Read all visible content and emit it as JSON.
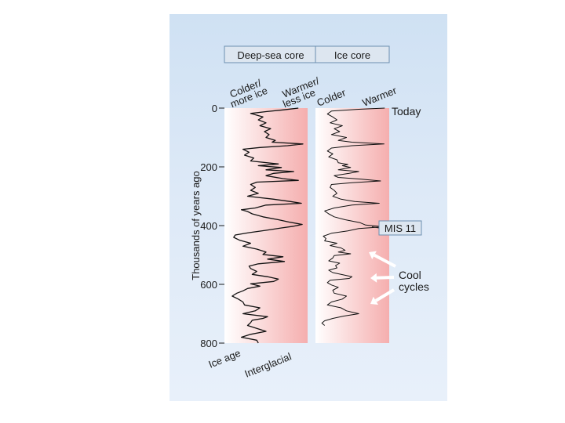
{
  "headers": {
    "deep_sea": "Deep-sea core",
    "ice_core": "Ice core"
  },
  "top_labels": {
    "colder_more_ice": [
      "Colder/",
      "more ice"
    ],
    "warmer_less_ice": [
      "Warmer/",
      "less ice"
    ],
    "colder": "Colder",
    "warmer": "Warmer"
  },
  "bottom_labels": {
    "ice_age": "Ice age",
    "interglacial": "Interglacial"
  },
  "annotations": {
    "today": "Today",
    "mis11": "MIS 11",
    "cool_cycles": [
      "Cool",
      "cycles"
    ]
  },
  "colors": {
    "cold": "#ffffff",
    "warm": "#f5aeae",
    "line": "#111111",
    "arrow": "#ffffff"
  },
  "chart_data": {
    "type": "line",
    "ylabel": "Thousands of years ago",
    "ylim": [
      0,
      800
    ],
    "yticks": [
      0,
      200,
      400,
      600,
      800
    ],
    "y_inverted": true,
    "series": [
      {
        "panel": "Deep-sea core",
        "scale": "relative index (0 = colder/more ice, 1 = warmer/less ice)",
        "points": [
          [
            0,
            0.92
          ],
          [
            6,
            0.72
          ],
          [
            12,
            0.5
          ],
          [
            18,
            0.3
          ],
          [
            24,
            0.38
          ],
          [
            30,
            0.46
          ],
          [
            40,
            0.4
          ],
          [
            50,
            0.5
          ],
          [
            60,
            0.42
          ],
          [
            70,
            0.56
          ],
          [
            80,
            0.48
          ],
          [
            90,
            0.54
          ],
          [
            100,
            0.5
          ],
          [
            110,
            0.62
          ],
          [
            116,
            0.58
          ],
          [
            122,
            0.98
          ],
          [
            128,
            0.78
          ],
          [
            134,
            0.42
          ],
          [
            140,
            0.2
          ],
          [
            150,
            0.28
          ],
          [
            160,
            0.22
          ],
          [
            170,
            0.34
          ],
          [
            180,
            0.3
          ],
          [
            190,
            0.66
          ],
          [
            196,
            0.4
          ],
          [
            202,
            0.7
          ],
          [
            210,
            0.5
          ],
          [
            216,
            0.86
          ],
          [
            222,
            0.6
          ],
          [
            230,
            0.5
          ],
          [
            240,
            0.72
          ],
          [
            246,
            0.92
          ],
          [
            252,
            0.38
          ],
          [
            260,
            0.3
          ],
          [
            270,
            0.36
          ],
          [
            280,
            0.3
          ],
          [
            290,
            0.4
          ],
          [
            300,
            0.26
          ],
          [
            310,
            0.6
          ],
          [
            318,
            0.82
          ],
          [
            324,
            0.96
          ],
          [
            330,
            0.5
          ],
          [
            340,
            0.36
          ],
          [
            346,
            0.18
          ],
          [
            352,
            0.26
          ],
          [
            360,
            0.32
          ],
          [
            370,
            0.46
          ],
          [
            380,
            0.66
          ],
          [
            388,
            0.8
          ],
          [
            396,
            0.97
          ],
          [
            402,
            0.86
          ],
          [
            408,
            0.7
          ],
          [
            416,
            0.5
          ],
          [
            424,
            0.28
          ],
          [
            432,
            0.1
          ],
          [
            440,
            0.08
          ],
          [
            450,
            0.16
          ],
          [
            460,
            0.3
          ],
          [
            470,
            0.2
          ],
          [
            480,
            0.38
          ],
          [
            490,
            0.5
          ],
          [
            498,
            0.46
          ],
          [
            506,
            0.72
          ],
          [
            514,
            0.52
          ],
          [
            522,
            0.74
          ],
          [
            530,
            0.4
          ],
          [
            538,
            0.28
          ],
          [
            546,
            0.3
          ],
          [
            556,
            0.38
          ],
          [
            566,
            0.32
          ],
          [
            574,
            0.52
          ],
          [
            582,
            0.66
          ],
          [
            590,
            0.6
          ],
          [
            598,
            0.3
          ],
          [
            606,
            0.42
          ],
          [
            614,
            0.26
          ],
          [
            622,
            0.2
          ],
          [
            630,
            0.12
          ],
          [
            640,
            0.06
          ],
          [
            650,
            0.14
          ],
          [
            660,
            0.2
          ],
          [
            670,
            0.22
          ],
          [
            680,
            0.42
          ],
          [
            690,
            0.36
          ],
          [
            700,
            0.2
          ],
          [
            710,
            0.52
          ],
          [
            716,
            0.46
          ],
          [
            722,
            0.32
          ],
          [
            730,
            0.3
          ],
          [
            740,
            0.26
          ],
          [
            750,
            0.38
          ],
          [
            760,
            0.5
          ],
          [
            770,
            0.3
          ],
          [
            780,
            0.18
          ],
          [
            790,
            0.38
          ],
          [
            800,
            0.4
          ]
        ]
      },
      {
        "panel": "Ice core",
        "scale": "relative index (0 = colder, 1 = warmer)",
        "points": [
          [
            0,
            0.98
          ],
          [
            4,
            0.6
          ],
          [
            10,
            0.2
          ],
          [
            20,
            0.14
          ],
          [
            30,
            0.22
          ],
          [
            40,
            0.28
          ],
          [
            50,
            0.18
          ],
          [
            60,
            0.36
          ],
          [
            70,
            0.24
          ],
          [
            80,
            0.32
          ],
          [
            90,
            0.2
          ],
          [
            100,
            0.42
          ],
          [
            110,
            0.3
          ],
          [
            116,
            0.5
          ],
          [
            122,
            0.97
          ],
          [
            128,
            0.5
          ],
          [
            136,
            0.2
          ],
          [
            146,
            0.14
          ],
          [
            156,
            0.22
          ],
          [
            166,
            0.16
          ],
          [
            176,
            0.28
          ],
          [
            186,
            0.3
          ],
          [
            192,
            0.44
          ],
          [
            196,
            0.36
          ],
          [
            202,
            0.48
          ],
          [
            210,
            0.3
          ],
          [
            216,
            0.6
          ],
          [
            222,
            0.46
          ],
          [
            230,
            0.24
          ],
          [
            236,
            0.3
          ],
          [
            242,
            0.64
          ],
          [
            248,
            0.92
          ],
          [
            254,
            0.5
          ],
          [
            260,
            0.2
          ],
          [
            270,
            0.18
          ],
          [
            280,
            0.24
          ],
          [
            290,
            0.28
          ],
          [
            300,
            0.22
          ],
          [
            310,
            0.34
          ],
          [
            318,
            0.54
          ],
          [
            324,
            0.9
          ],
          [
            330,
            0.5
          ],
          [
            340,
            0.24
          ],
          [
            350,
            0.1
          ],
          [
            360,
            0.16
          ],
          [
            370,
            0.24
          ],
          [
            380,
            0.4
          ],
          [
            390,
            0.62
          ],
          [
            398,
            0.7
          ],
          [
            404,
            0.97
          ],
          [
            410,
            0.6
          ],
          [
            418,
            0.44
          ],
          [
            426,
            0.2
          ],
          [
            436,
            0.08
          ],
          [
            444,
            0.12
          ],
          [
            452,
            0.1
          ],
          [
            460,
            0.28
          ],
          [
            468,
            0.18
          ],
          [
            476,
            0.34
          ],
          [
            484,
            0.4
          ],
          [
            490,
            0.3
          ],
          [
            496,
            0.48
          ],
          [
            502,
            0.24
          ],
          [
            510,
            0.22
          ],
          [
            520,
            0.16
          ],
          [
            528,
            0.32
          ],
          [
            536,
            0.26
          ],
          [
            544,
            0.28
          ],
          [
            552,
            0.16
          ],
          [
            560,
            0.22
          ],
          [
            566,
            0.34
          ],
          [
            574,
            0.5
          ],
          [
            580,
            0.46
          ],
          [
            586,
            0.18
          ],
          [
            594,
            0.14
          ],
          [
            602,
            0.2
          ],
          [
            610,
            0.3
          ],
          [
            620,
            0.22
          ],
          [
            630,
            0.24
          ],
          [
            640,
            0.42
          ],
          [
            650,
            0.36
          ],
          [
            660,
            0.2
          ],
          [
            670,
            0.14
          ],
          [
            680,
            0.34
          ],
          [
            690,
            0.42
          ],
          [
            700,
            0.6
          ],
          [
            708,
            0.38
          ],
          [
            716,
            0.22
          ],
          [
            724,
            0.1
          ],
          [
            732,
            0.06
          ],
          [
            740,
            0.1
          ]
        ]
      }
    ],
    "colors": {
      "line": "#111111"
    }
  }
}
